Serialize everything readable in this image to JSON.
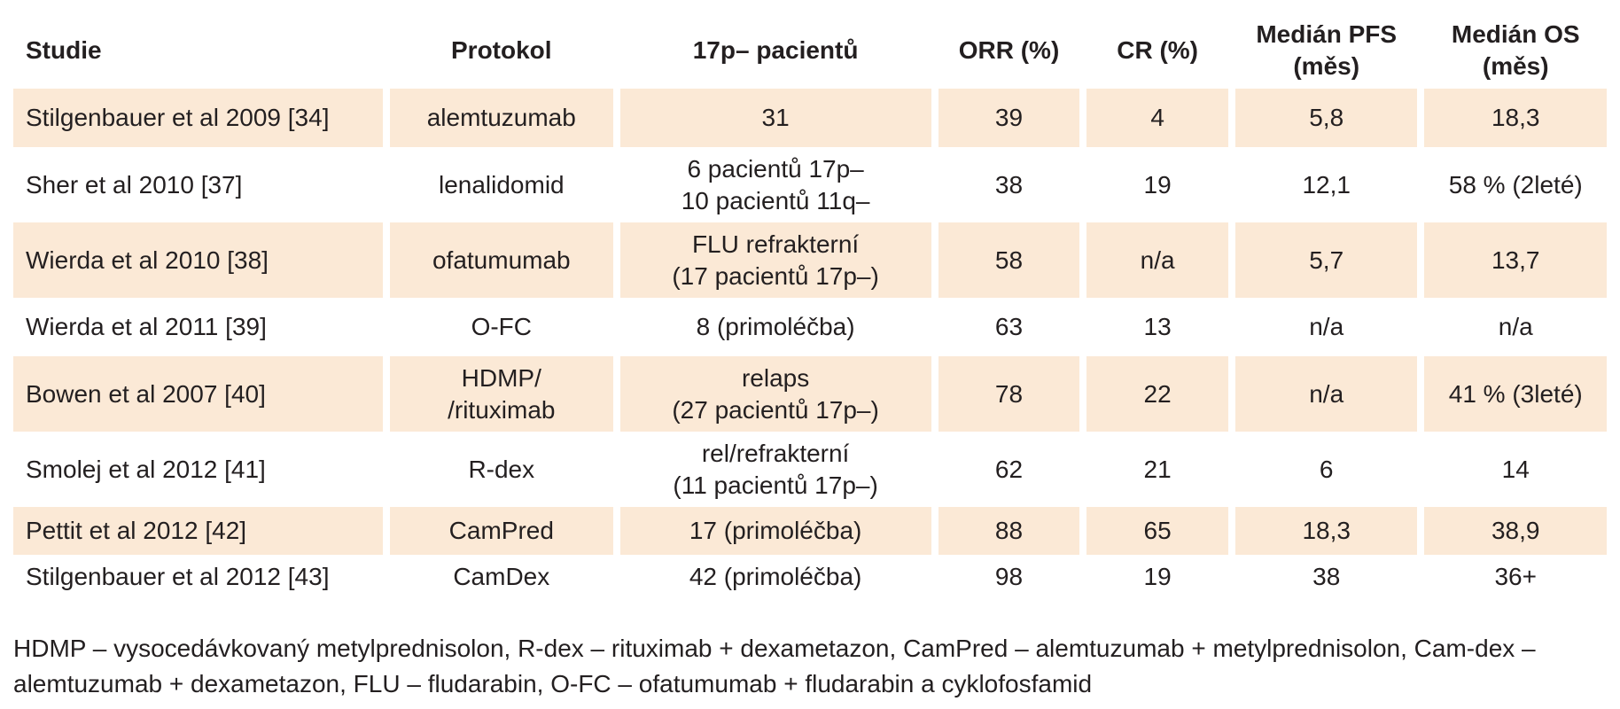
{
  "headers": [
    "Studie",
    "Protokol",
    "17p– pacientů",
    "ORR (%)",
    "CR (%)",
    "Medián PFS\n(měs)",
    "Medián OS\n(měs)"
  ],
  "rows": [
    {
      "studie": "Stilgenbauer et al 2009 [34]",
      "protokol": "alemtuzumab",
      "pacienti": "31",
      "orr": "39",
      "cr": "4",
      "pfs": "5,8",
      "os": "18,3"
    },
    {
      "studie": "Sher et al 2010 [37]",
      "protokol": "lenalidomid",
      "pacienti": "6 pacientů 17p–\n10 pacientů 11q–",
      "orr": "38",
      "cr": "19",
      "pfs": "12,1",
      "os": "58 % (2leté)"
    },
    {
      "studie": "Wierda et al 2010 [38]",
      "protokol": "ofatumumab",
      "pacienti": "FLU refrakterní\n(17 pacientů 17p–)",
      "orr": "58",
      "cr": "n/a",
      "pfs": "5,7",
      "os": "13,7"
    },
    {
      "studie": "Wierda et al 2011 [39]",
      "protokol": "O-FC",
      "pacienti": "8 (primoléčba)",
      "orr": "63",
      "cr": "13",
      "pfs": "n/a",
      "os": "n/a"
    },
    {
      "studie": "Bowen et al 2007 [40]",
      "protokol": "HDMP/\n/rituximab",
      "pacienti": "relaps\n(27 pacientů 17p–)",
      "orr": "78",
      "cr": "22",
      "pfs": "n/a",
      "os": "41 % (3leté)"
    },
    {
      "studie": "Smolej et al 2012 [41]",
      "protokol": "R-dex",
      "pacienti": "rel/refrakterní\n(11 pacientů 17p–)",
      "orr": "62",
      "cr": "21",
      "pfs": "6",
      "os": "14"
    },
    {
      "studie": "Pettit et al 2012 [42]",
      "protokol": "CamPred",
      "pacienti": "17 (primoléčba)",
      "orr": "88",
      "cr": "65",
      "pfs": "18,3",
      "os": "38,9"
    },
    {
      "studie": "Stilgenbauer et al 2012 [43]",
      "protokol": "CamDex",
      "pacienti": "42 (primoléčba)",
      "orr": "98",
      "cr": "19",
      "pfs": "38",
      "os": "36+"
    }
  ],
  "footnote": "HDMP – vysocedávkovaný metylprednisolon, R-dex – rituximab + dexametazon, CamPred – alemtuzumab + metylprednisolon, Cam-dex – alemtuzumab + dexametazon, FLU – fludarabin, O-FC – ofatumumab + fludarabin a cyklofosfamid",
  "colors": {
    "shaded_row": "#fbe9d6",
    "text": "#231f20"
  }
}
